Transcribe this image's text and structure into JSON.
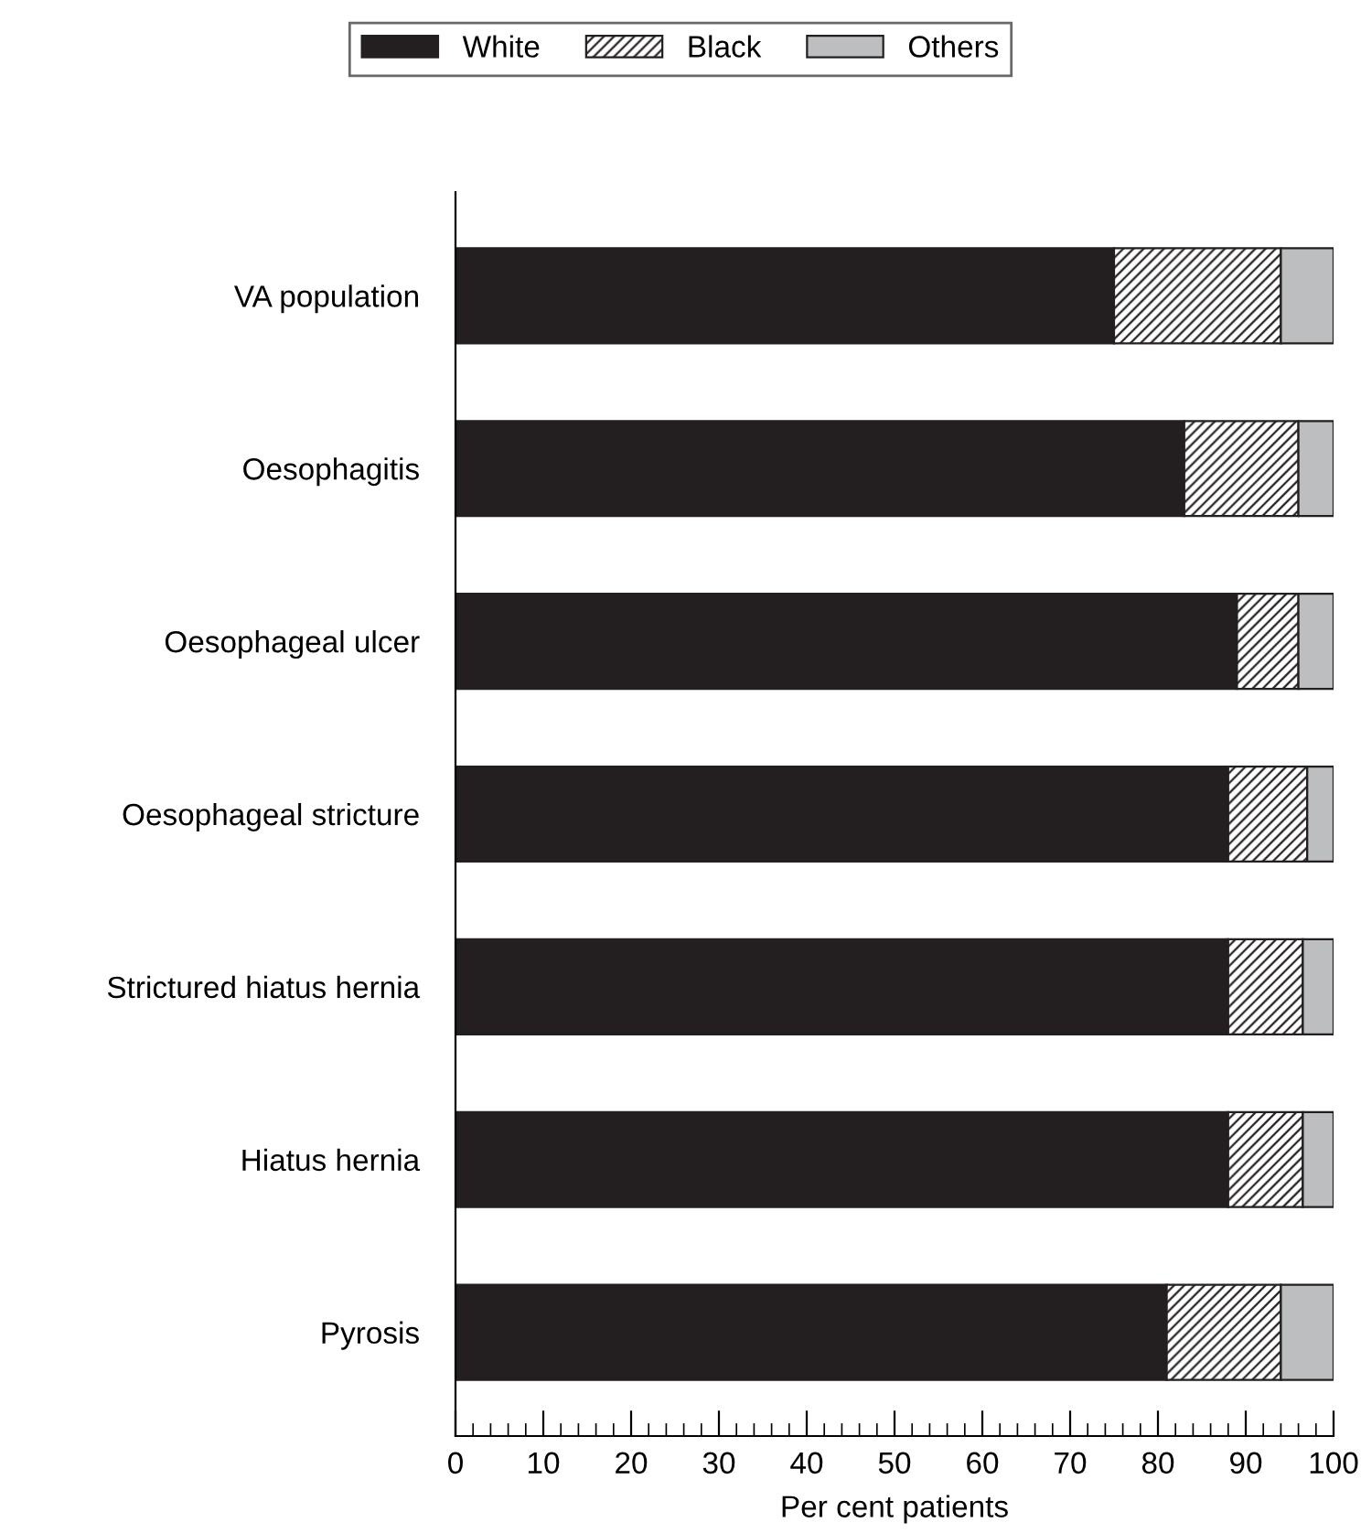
{
  "chart_data": {
    "type": "bar",
    "orientation": "horizontal",
    "stacked": true,
    "xlabel": "Per cent patients",
    "categories": [
      "VA population",
      "Oesophagitis",
      "Oesophageal ulcer",
      "Oesophageal stricture",
      "Strictured hiatus hernia",
      "Hiatus hernia",
      "Pyrosis"
    ],
    "series": [
      {
        "name": "White",
        "color": "#231f20",
        "values": [
          75,
          83,
          89,
          88,
          88,
          88,
          81
        ]
      },
      {
        "name": "Black",
        "color": "#231f20",
        "values": [
          19,
          13,
          7,
          9,
          8.5,
          8.5,
          13
        ]
      },
      {
        "name": "Others",
        "color": "#bcbec0",
        "values": [
          6,
          4,
          4,
          3,
          3.5,
          3.5,
          6
        ]
      }
    ],
    "xlim": [
      0,
      100
    ],
    "xticks": [
      0,
      10,
      20,
      30,
      40,
      50,
      60,
      70,
      80,
      90,
      100
    ],
    "grid": false,
    "legend": "top"
  }
}
